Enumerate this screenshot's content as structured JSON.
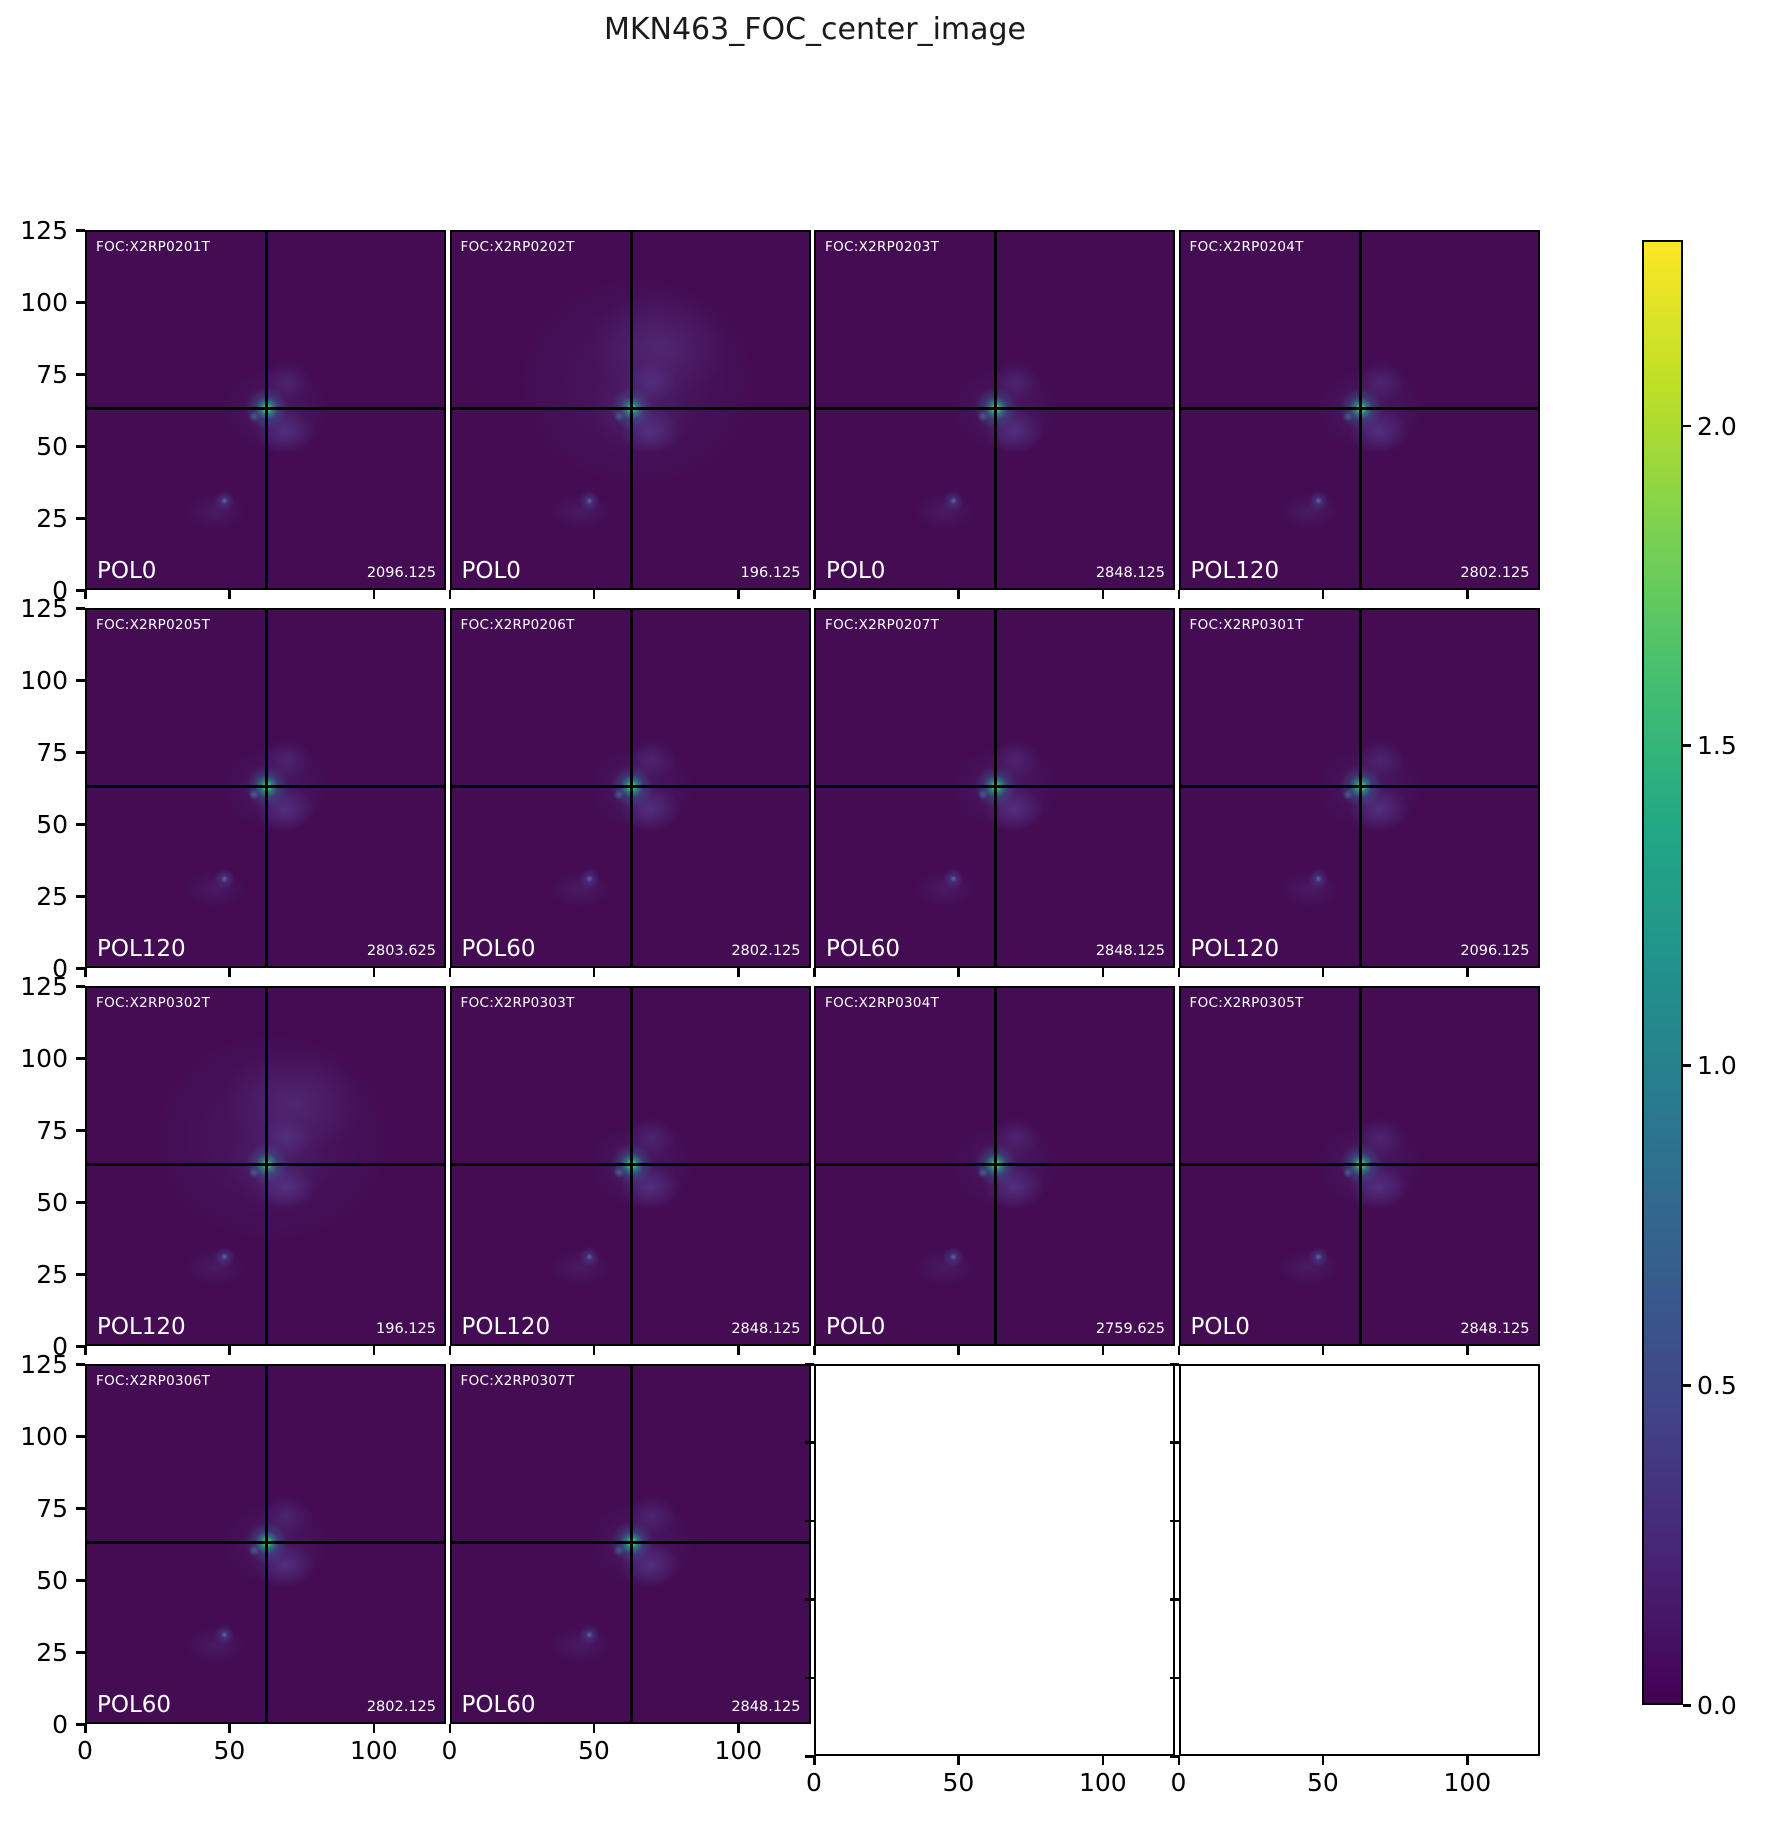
{
  "title": "MKN463_FOC_center_image",
  "axes": {
    "y_tick_labels": [
      "125",
      "100",
      "75",
      "50",
      "25",
      "0"
    ],
    "x_tick_labels": [
      "0",
      "50",
      "100"
    ]
  },
  "colorbar": {
    "tick_labels": [
      "2.0",
      "1.5",
      "1.0",
      "0.5",
      "0.0"
    ]
  },
  "chart_data": {
    "type": "heatmap",
    "title": "MKN463_FOC_center_image",
    "colormap": "viridis",
    "grid": {
      "rows": 4,
      "cols": 4
    },
    "x_range": [
      0,
      125
    ],
    "y_range": [
      0,
      125
    ],
    "x_ticks": [
      0,
      50,
      100
    ],
    "y_ticks": [
      125,
      100,
      75,
      50,
      25,
      0
    ],
    "crosshair": {
      "x": 63,
      "y": 63
    },
    "colorbar": {
      "min": 0.0,
      "max": 2.29,
      "ticks": [
        2.0,
        1.5,
        1.0,
        0.5,
        0.0
      ]
    },
    "panels": [
      {
        "row": 1,
        "col": 1,
        "empty": false,
        "foc_id": "FOC:X2RP0201T",
        "pol_filter": "POL0",
        "value": 2096.125
      },
      {
        "row": 1,
        "col": 2,
        "empty": false,
        "foc_id": "FOC:X2RP0202T",
        "pol_filter": "POL0",
        "value": 196.125
      },
      {
        "row": 1,
        "col": 3,
        "empty": false,
        "foc_id": "FOC:X2RP0203T",
        "pol_filter": "POL0",
        "value": 2848.125
      },
      {
        "row": 1,
        "col": 4,
        "empty": false,
        "foc_id": "FOC:X2RP0204T",
        "pol_filter": "POL120",
        "value": 2802.125
      },
      {
        "row": 2,
        "col": 1,
        "empty": false,
        "foc_id": "FOC:X2RP0205T",
        "pol_filter": "POL120",
        "value": 2803.625
      },
      {
        "row": 2,
        "col": 2,
        "empty": false,
        "foc_id": "FOC:X2RP0206T",
        "pol_filter": "POL60",
        "value": 2802.125
      },
      {
        "row": 2,
        "col": 3,
        "empty": false,
        "foc_id": "FOC:X2RP0207T",
        "pol_filter": "POL60",
        "value": 2848.125
      },
      {
        "row": 2,
        "col": 4,
        "empty": false,
        "foc_id": "FOC:X2RP0301T",
        "pol_filter": "POL120",
        "value": 2096.125
      },
      {
        "row": 3,
        "col": 1,
        "empty": false,
        "foc_id": "FOC:X2RP0302T",
        "pol_filter": "POL120",
        "value": 196.125
      },
      {
        "row": 3,
        "col": 2,
        "empty": false,
        "foc_id": "FOC:X2RP0303T",
        "pol_filter": "POL120",
        "value": 2848.125
      },
      {
        "row": 3,
        "col": 3,
        "empty": false,
        "foc_id": "FOC:X2RP0304T",
        "pol_filter": "POL0",
        "value": 2759.625
      },
      {
        "row": 3,
        "col": 4,
        "empty": false,
        "foc_id": "FOC:X2RP0305T",
        "pol_filter": "POL0",
        "value": 2848.125
      },
      {
        "row": 4,
        "col": 1,
        "empty": false,
        "foc_id": "FOC:X2RP0306T",
        "pol_filter": "POL60",
        "value": 2802.125
      },
      {
        "row": 4,
        "col": 2,
        "empty": false,
        "foc_id": "FOC:X2RP0307T",
        "pol_filter": "POL60",
        "value": 2848.125
      },
      {
        "row": 4,
        "col": 3,
        "empty": true
      },
      {
        "row": 4,
        "col": 4,
        "empty": true
      }
    ]
  }
}
